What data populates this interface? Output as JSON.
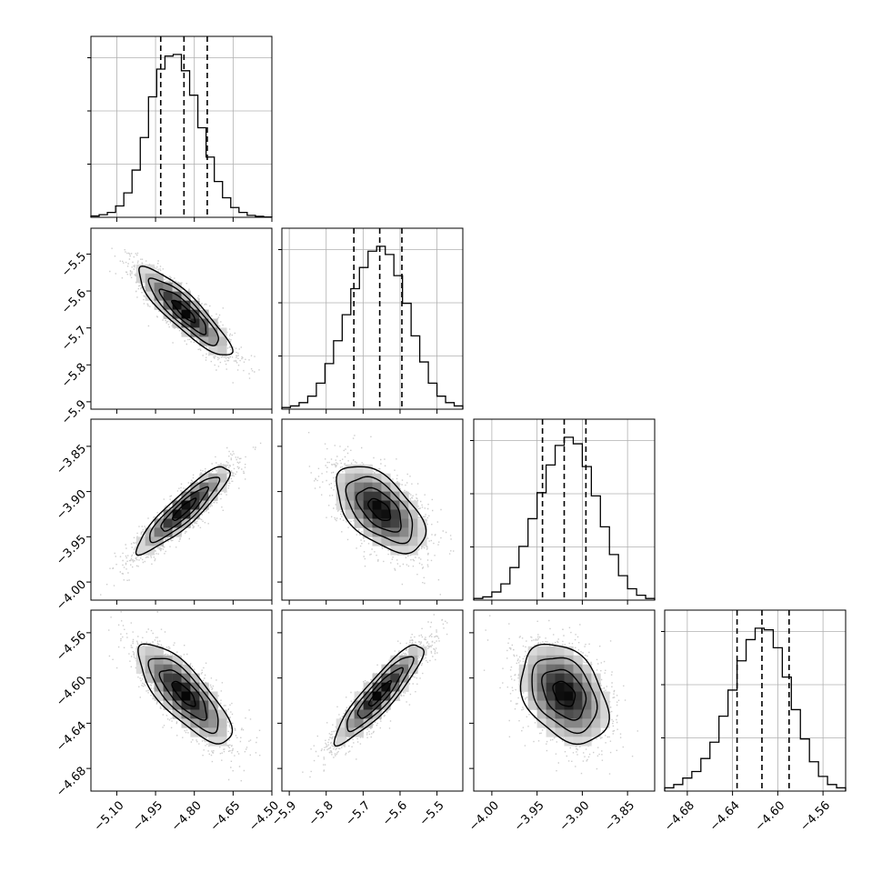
{
  "chart_data": {
    "type": "corner",
    "parameters": [
      {
        "range": [
          -5.2,
          -4.5
        ],
        "ticks": [
          -5.1,
          -4.95,
          -4.8,
          -4.65,
          -4.5
        ],
        "tick_labels": [
          "−5.10",
          "−4.95",
          "−4.80",
          "−4.65",
          "−4.50"
        ],
        "quantiles": [
          -4.93,
          -4.84,
          -4.75
        ],
        "hist": [
          0.008,
          0.016,
          0.03,
          0.07,
          0.15,
          0.29,
          0.49,
          0.74,
          0.91,
          0.99,
          1.0,
          0.9,
          0.75,
          0.55,
          0.37,
          0.22,
          0.12,
          0.06,
          0.03,
          0.012,
          0.006,
          0.002
        ]
      },
      {
        "range": [
          -5.92,
          -5.43
        ],
        "ticks": [
          -5.9,
          -5.8,
          -5.7,
          -5.6,
          -5.5
        ],
        "tick_labels": [
          "−5.9",
          "−5.8",
          "−5.7",
          "−5.6",
          "−5.5"
        ],
        "quantiles": [
          -5.725,
          -5.655,
          -5.595
        ],
        "hist": [
          0.01,
          0.02,
          0.04,
          0.08,
          0.16,
          0.28,
          0.42,
          0.58,
          0.74,
          0.87,
          0.97,
          1.0,
          0.95,
          0.82,
          0.65,
          0.45,
          0.29,
          0.16,
          0.08,
          0.04,
          0.02
        ]
      },
      {
        "range": [
          -4.02,
          -3.82
        ],
        "ticks": [
          -4.0,
          -3.95,
          -3.9,
          -3.85
        ],
        "tick_labels": [
          "−4.00",
          "−3.95",
          "−3.90",
          "−3.85"
        ],
        "quantiles": [
          -3.944,
          -3.92,
          -3.896
        ],
        "hist": [
          0.01,
          0.02,
          0.05,
          0.1,
          0.2,
          0.33,
          0.5,
          0.66,
          0.83,
          0.95,
          1.0,
          0.96,
          0.82,
          0.64,
          0.45,
          0.28,
          0.15,
          0.07,
          0.03,
          0.01
        ]
      },
      {
        "range": [
          -4.7,
          -4.54
        ],
        "ticks": [
          -4.68,
          -4.64,
          -4.6,
          -4.56
        ],
        "tick_labels": [
          "−4.68",
          "−4.64",
          "−4.60",
          "−4.56"
        ],
        "quantiles": [
          -4.636,
          -4.614,
          -4.59
        ],
        "hist": [
          0.02,
          0.04,
          0.08,
          0.12,
          0.2,
          0.3,
          0.46,
          0.62,
          0.8,
          0.93,
          1.0,
          0.99,
          0.88,
          0.7,
          0.5,
          0.32,
          0.18,
          0.09,
          0.04,
          0.02
        ]
      }
    ],
    "pairs": [
      {
        "x": 0,
        "y": 1,
        "mean": [
          -4.84,
          -5.655
        ],
        "sd": [
          0.09,
          0.06
        ],
        "corr": -0.88
      },
      {
        "x": 0,
        "y": 2,
        "mean": [
          -4.84,
          -3.92
        ],
        "sd": [
          0.09,
          0.024
        ],
        "corr": 0.9
      },
      {
        "x": 1,
        "y": 2,
        "mean": [
          -5.655,
          -3.92
        ],
        "sd": [
          0.06,
          0.024
        ],
        "corr": -0.55
      },
      {
        "x": 0,
        "y": 3,
        "mean": [
          -4.84,
          -4.614
        ],
        "sd": [
          0.09,
          0.022
        ],
        "corr": -0.78
      },
      {
        "x": 1,
        "y": 3,
        "mean": [
          -5.655,
          -4.614
        ],
        "sd": [
          0.06,
          0.022
        ],
        "corr": 0.9
      },
      {
        "x": 2,
        "y": 3,
        "mean": [
          -3.92,
          -4.614
        ],
        "sd": [
          0.024,
          0.022
        ],
        "corr": -0.35
      }
    ],
    "contour_levels_sigma": [
      0.5,
      1.0,
      1.5,
      2.0
    ],
    "grid": true,
    "colors": {
      "hist": "#000000",
      "points": "#b0b0b0",
      "density": "#000000",
      "grid": "#b0b0b0"
    }
  }
}
